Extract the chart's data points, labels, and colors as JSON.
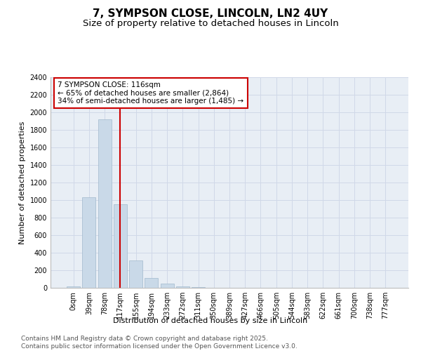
{
  "title": "7, SYMPSON CLOSE, LINCOLN, LN2 4UY",
  "subtitle": "Size of property relative to detached houses in Lincoln",
  "xlabel": "Distribution of detached houses by size in Lincoln",
  "ylabel": "Number of detached properties",
  "categories": [
    "0sqm",
    "39sqm",
    "78sqm",
    "117sqm",
    "155sqm",
    "194sqm",
    "233sqm",
    "272sqm",
    "311sqm",
    "350sqm",
    "389sqm",
    "427sqm",
    "466sqm",
    "505sqm",
    "544sqm",
    "583sqm",
    "622sqm",
    "661sqm",
    "700sqm",
    "738sqm",
    "777sqm"
  ],
  "values": [
    20,
    1030,
    1920,
    950,
    310,
    110,
    45,
    20,
    10,
    0,
    0,
    0,
    0,
    0,
    0,
    0,
    0,
    0,
    0,
    0,
    0
  ],
  "bar_color": "#c9d9e8",
  "bar_edge_color": "#a0b8cc",
  "red_line_index": 3,
  "annotation_text": "7 SYMPSON CLOSE: 116sqm\n← 65% of detached houses are smaller (2,864)\n34% of semi-detached houses are larger (1,485) →",
  "annotation_box_color": "#ffffff",
  "annotation_box_edge": "#cc0000",
  "red_line_color": "#cc0000",
  "ylim": [
    0,
    2400
  ],
  "yticks": [
    0,
    200,
    400,
    600,
    800,
    1000,
    1200,
    1400,
    1600,
    1800,
    2000,
    2200,
    2400
  ],
  "grid_color": "#d0d8e8",
  "bg_color": "#e8eef5",
  "title_fontsize": 11,
  "subtitle_fontsize": 9.5,
  "label_fontsize": 8,
  "tick_fontsize": 7,
  "annot_fontsize": 7.5,
  "footer_text": "Contains HM Land Registry data © Crown copyright and database right 2025.\nContains public sector information licensed under the Open Government Licence v3.0.",
  "footer_fontsize": 6.5
}
